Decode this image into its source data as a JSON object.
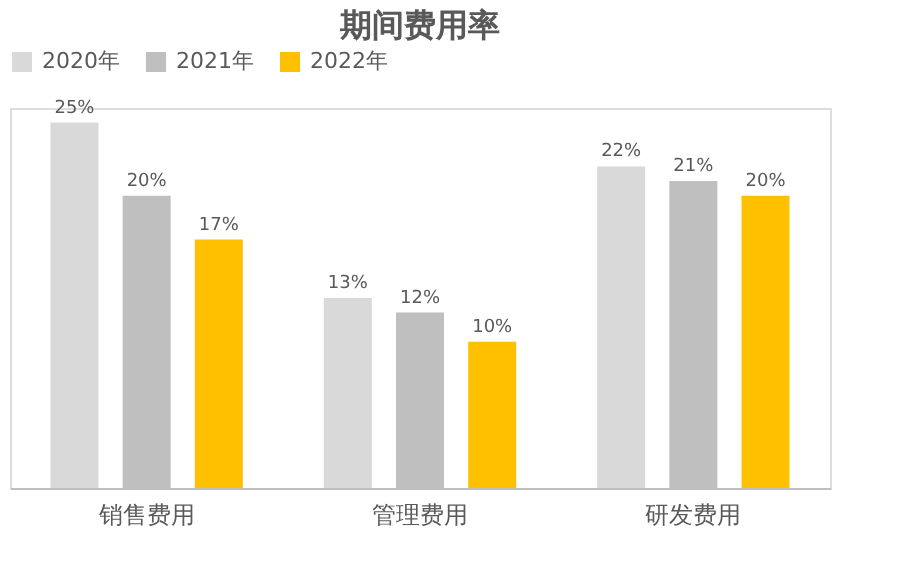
{
  "chart_data": {
    "type": "bar",
    "title": "期间费用率",
    "categories": [
      "销售费用",
      "管理费用",
      "研发费用"
    ],
    "legend": "top",
    "grid": false,
    "series": [
      {
        "name": "2020年",
        "color": "#d9d9d9",
        "values": [
          25,
          13,
          22
        ],
        "value_labels": [
          "25%",
          "13%",
          "22%"
        ]
      },
      {
        "name": "2021年",
        "color": "#bfbfbf",
        "values": [
          20,
          12,
          21
        ],
        "value_labels": [
          "20%",
          "12%",
          "21%"
        ]
      },
      {
        "name": "2022年",
        "color": "#ffc000",
        "values": [
          17,
          10,
          20
        ],
        "value_labels": [
          "17%",
          "10%",
          "20%"
        ]
      }
    ]
  }
}
